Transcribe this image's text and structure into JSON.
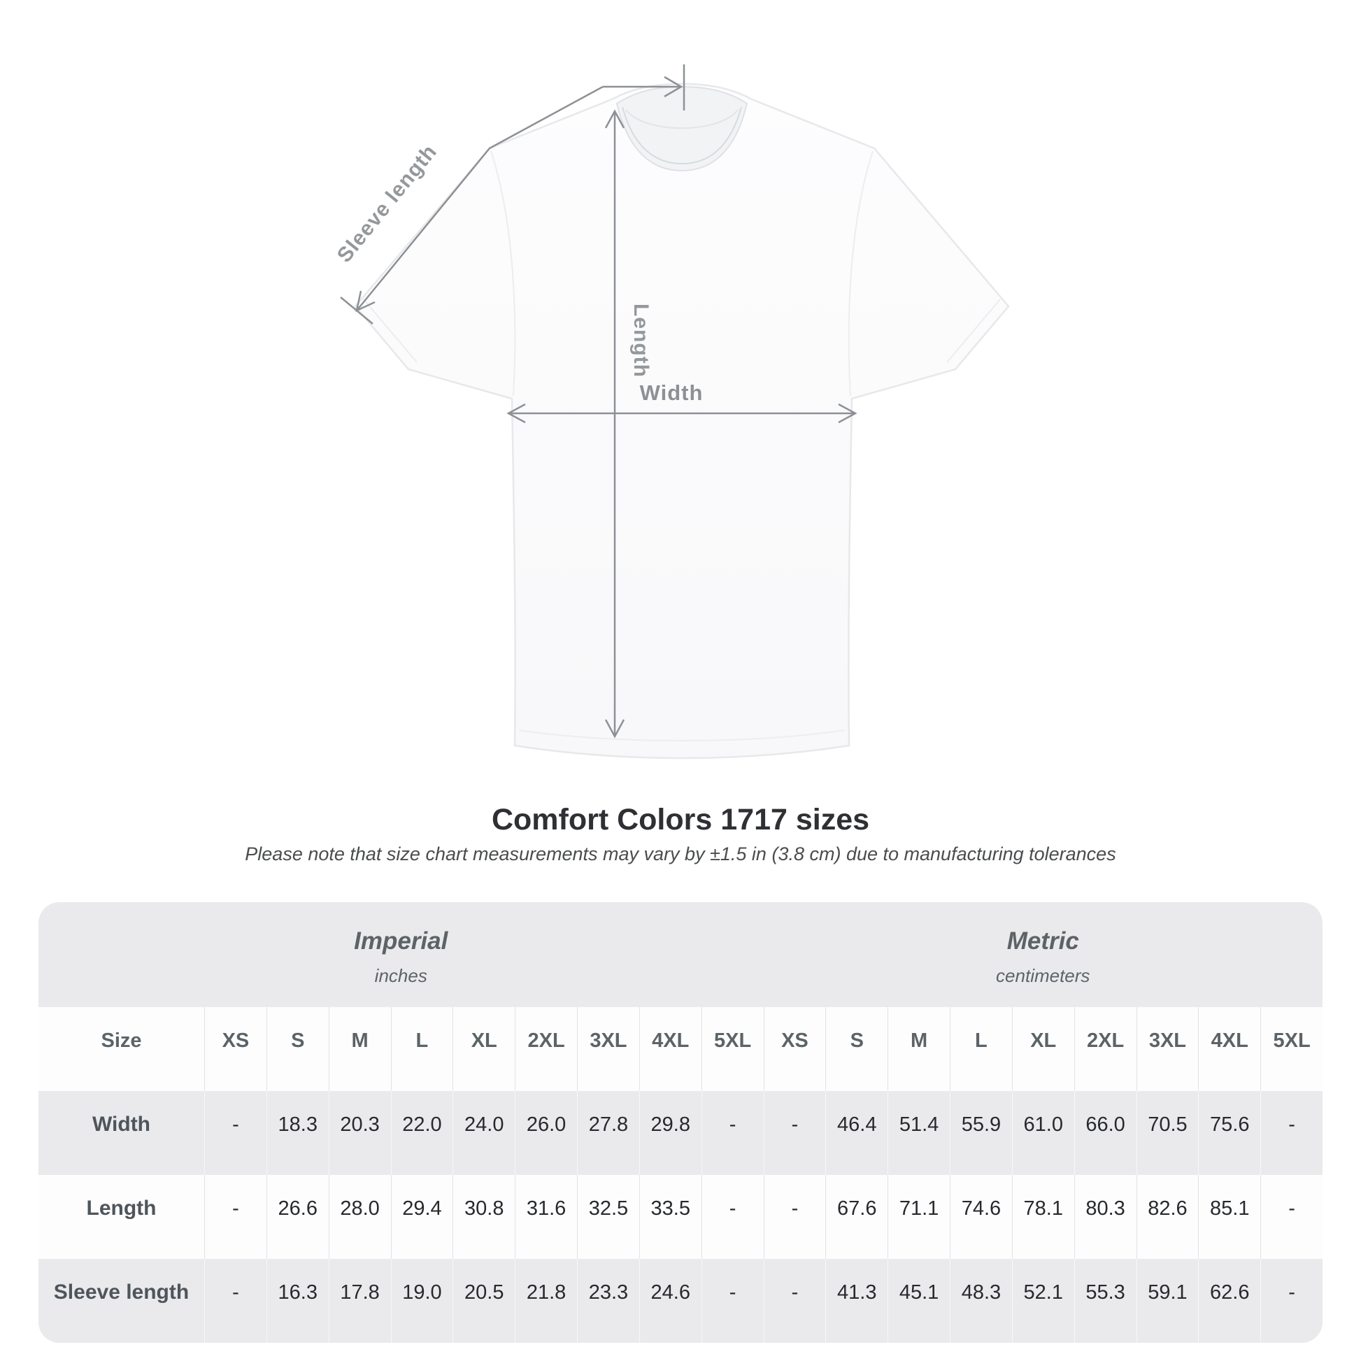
{
  "title": "Comfort Colors 1717 sizes",
  "subtitle": "Please note that size chart measurements may vary by ±1.5 in (3.8 cm) due to manufacturing tolerances",
  "diagram": {
    "sleeve_label": "Sleeve length",
    "length_label": "Length",
    "width_label": "Width"
  },
  "chart_data": {
    "type": "table",
    "title": "Comfort Colors 1717 sizes",
    "note": "Measurements may vary by ±1.5 in (3.8 cm) due to manufacturing tolerances",
    "corner_header": "Size",
    "columns_groups": [
      {
        "label": "Imperial",
        "sublabel": "inches"
      },
      {
        "label": "Metric",
        "sublabel": "centimeters"
      }
    ],
    "size_columns": [
      "XS",
      "S",
      "M",
      "L",
      "XL",
      "2XL",
      "3XL",
      "4XL",
      "5XL"
    ],
    "rows": [
      {
        "label": "Width",
        "imperial": [
          "-",
          "18.3",
          "20.3",
          "22.0",
          "24.0",
          "26.0",
          "27.8",
          "29.8",
          "-"
        ],
        "metric": [
          "-",
          "46.4",
          "51.4",
          "55.9",
          "61.0",
          "66.0",
          "70.5",
          "75.6",
          "-"
        ]
      },
      {
        "label": "Length",
        "imperial": [
          "-",
          "26.6",
          "28.0",
          "29.4",
          "30.8",
          "31.6",
          "32.5",
          "33.5",
          "-"
        ],
        "metric": [
          "-",
          "67.6",
          "71.1",
          "74.6",
          "78.1",
          "80.3",
          "82.6",
          "85.1",
          "-"
        ]
      },
      {
        "label": "Sleeve length",
        "imperial": [
          "-",
          "16.3",
          "17.8",
          "19.0",
          "20.5",
          "21.8",
          "23.3",
          "24.6",
          "-"
        ],
        "metric": [
          "-",
          "41.3",
          "45.1",
          "48.3",
          "52.1",
          "55.3",
          "59.1",
          "62.6",
          "-"
        ]
      }
    ]
  },
  "colors": {
    "panel": "#eaeaec",
    "row_white": "#fdfdfe",
    "annotation_line": "#8d9195",
    "annotation_text": "#94989b",
    "header_text": "#5c6367",
    "value_text": "#27292c"
  }
}
